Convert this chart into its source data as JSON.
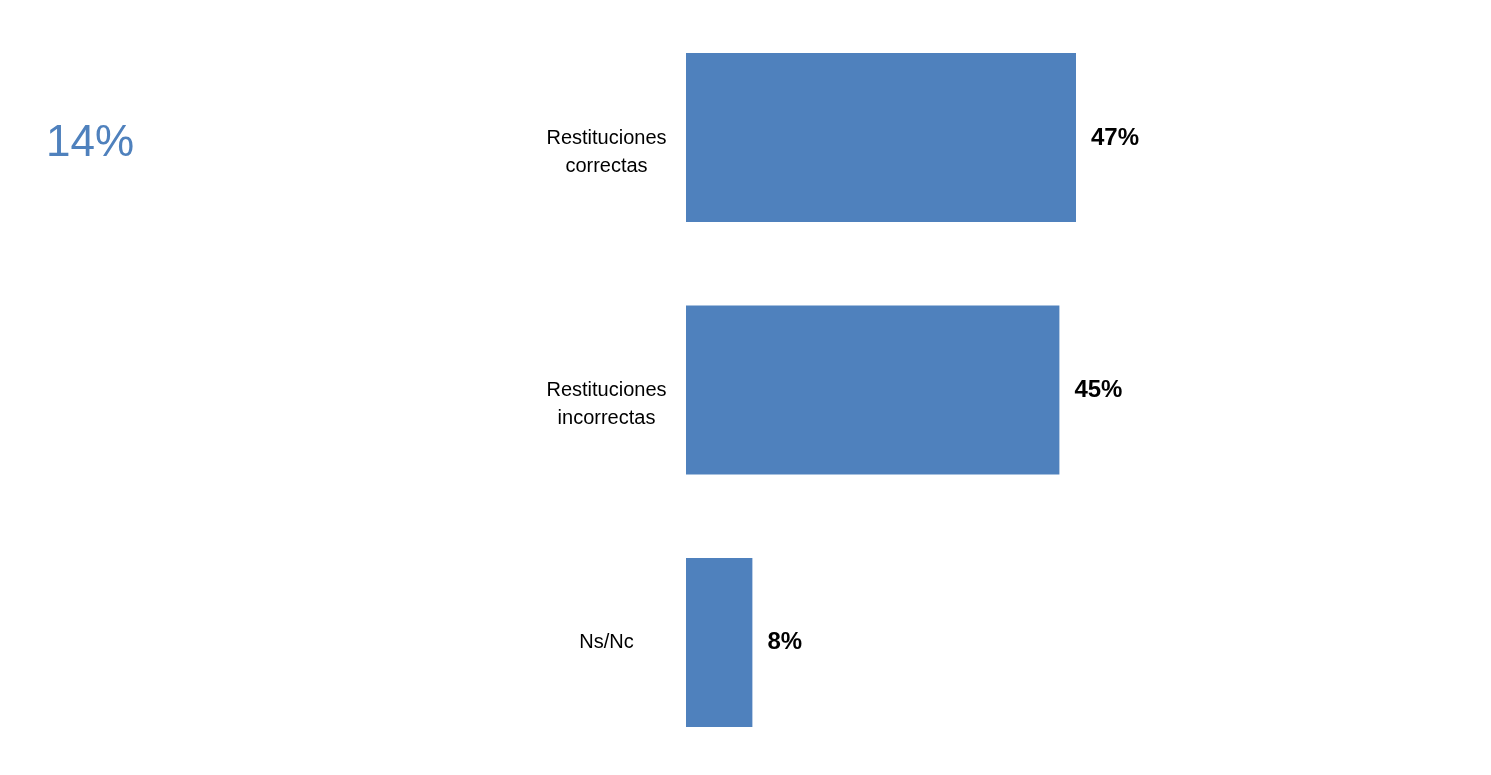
{
  "chart_data": {
    "type": "bar",
    "orientation": "horizontal",
    "categories": [
      "Restituciones correctas",
      "Restituciones incorrectas",
      "Ns/Nc"
    ],
    "values": [
      47,
      45,
      8
    ],
    "color": "#4f81bd",
    "value_labels": [
      "47%",
      "45%",
      "8%"
    ],
    "tick_labels": "y",
    "annotations": [
      "14%"
    ]
  }
}
